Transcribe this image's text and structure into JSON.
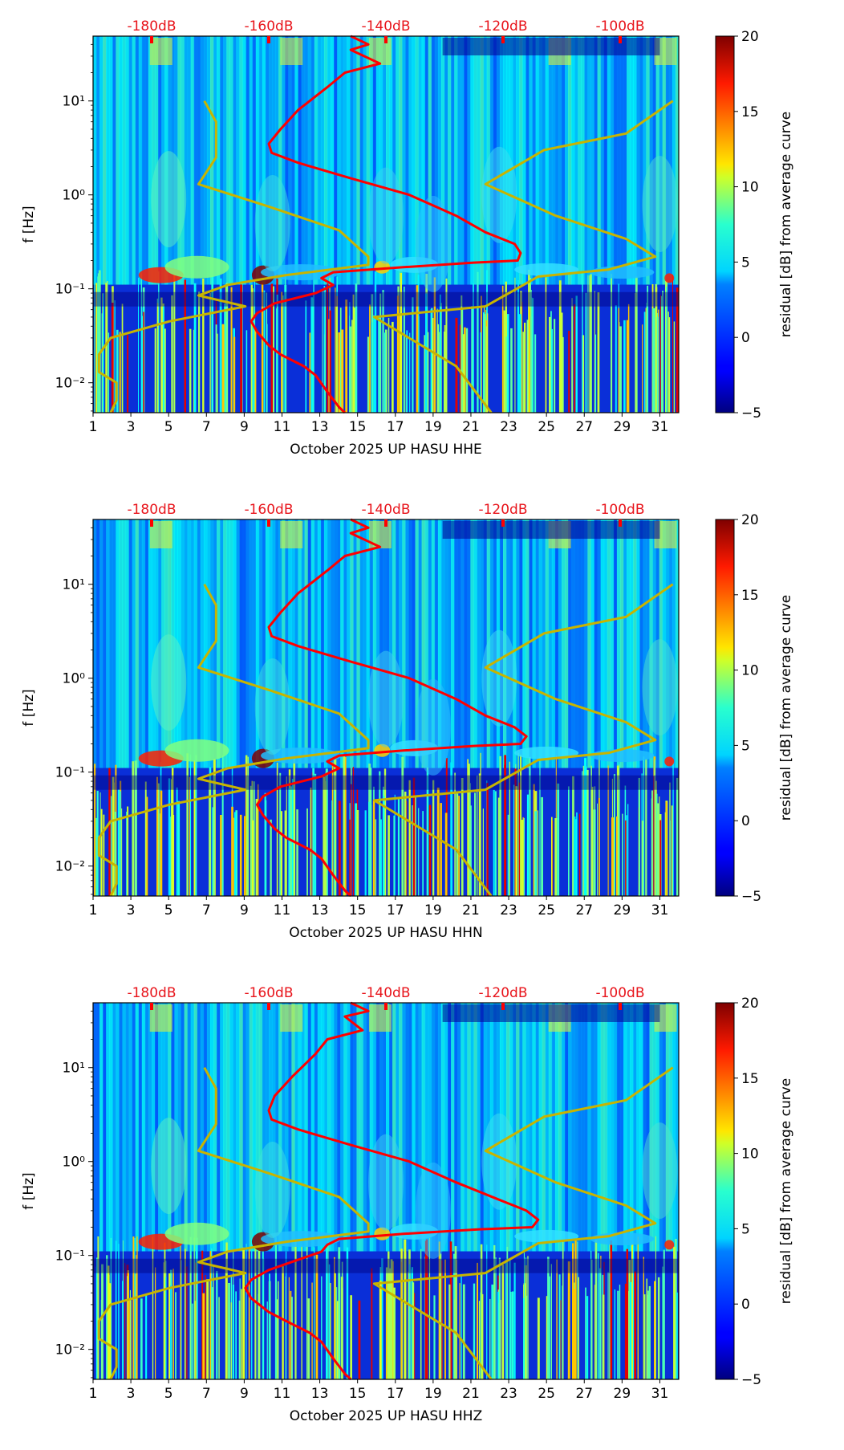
{
  "chart_data": [
    {
      "type": "heatmap",
      "title": "",
      "xlabel": "October 2025 UP HASU  HHE",
      "ylabel": "f [Hz]",
      "colorbar_label": "residual [dB] from average curve",
      "colorbar_ticks": [
        "20",
        "15",
        "10",
        "5",
        "0",
        "−5"
      ],
      "colorbar_range": [
        -5,
        20
      ],
      "colormap": "jet",
      "xlim": [
        1,
        32
      ],
      "x_tick_labels": [
        "1",
        "3",
        "5",
        "7",
        "9",
        "11",
        "13",
        "15",
        "17",
        "19",
        "21",
        "23",
        "25",
        "27",
        "29",
        "31"
      ],
      "yscale": "log",
      "ylim": [
        0.0048,
        49
      ],
      "y_tick_labels": [
        "10¹",
        "10⁰",
        "10⁻¹",
        "10⁻²"
      ],
      "top_axis_labels": [
        "-180dB",
        "-160dB",
        "-140dB",
        "-120dB",
        "-100dB"
      ],
      "top_axis_range_db": [
        -190,
        -90
      ],
      "series": [
        {
          "name": "average-psd-curve",
          "color": "#ff0000",
          "points_db_hz": [
            [
              -146,
              49
            ],
            [
              -143,
              40
            ],
            [
              -146,
              35
            ],
            [
              -141,
              25
            ],
            [
              -147,
              20
            ],
            [
              -150,
              14
            ],
            [
              -155,
              8
            ],
            [
              -158,
              5
            ],
            [
              -160,
              3.5
            ],
            [
              -159.5,
              2.8
            ],
            [
              -155,
              2.2
            ],
            [
              -146,
              1.5
            ],
            [
              -136,
              1.0
            ],
            [
              -128,
              0.6
            ],
            [
              -123,
              0.4
            ],
            [
              -118,
              0.3
            ],
            [
              -117,
              0.24
            ],
            [
              -117.5,
              0.2
            ],
            [
              -125,
              0.19
            ],
            [
              -137,
              0.17
            ],
            [
              -149,
              0.15
            ],
            [
              -151,
              0.13
            ],
            [
              -149,
              0.11
            ],
            [
              -152,
              0.09
            ],
            [
              -159,
              0.07
            ],
            [
              -162,
              0.055
            ],
            [
              -163,
              0.045
            ],
            [
              -162,
              0.035
            ],
            [
              -160,
              0.025
            ],
            [
              -158,
              0.02
            ],
            [
              -154,
              0.015
            ],
            [
              -152,
              0.012
            ],
            [
              -150,
              0.008
            ],
            [
              -148,
              0.0055
            ],
            [
              -147,
              0.0048
            ]
          ]
        },
        {
          "name": "noise-model-low",
          "color": "#c8b400",
          "points_db_hz": [
            [
              -171,
              10
            ],
            [
              -169,
              6
            ],
            [
              -169,
              2.5
            ],
            [
              -172,
              1.3
            ],
            [
              -160,
              0.75
            ],
            [
              -148,
              0.42
            ],
            [
              -143,
              0.22
            ],
            [
              -143,
              0.18
            ],
            [
              -157,
              0.14
            ],
            [
              -167,
              0.11
            ],
            [
              -172,
              0.085
            ],
            [
              -164,
              0.065
            ],
            [
              -177,
              0.045
            ],
            [
              -187,
              0.03
            ],
            [
              -189,
              0.02
            ],
            [
              -189,
              0.013
            ],
            [
              -186,
              0.01
            ],
            [
              -186,
              0.0065
            ],
            [
              -187,
              0.0048
            ]
          ]
        },
        {
          "name": "noise-model-high",
          "color": "#c8b400",
          "points_db_hz": [
            [
              -91,
              10
            ],
            [
              -99,
              4.5
            ],
            [
              -113,
              3
            ],
            [
              -123,
              1.3
            ],
            [
              -111,
              0.6
            ],
            [
              -99,
              0.34
            ],
            [
              -94,
              0.22
            ],
            [
              -102,
              0.16
            ],
            [
              -114,
              0.135
            ],
            [
              -123,
              0.065
            ],
            [
              -142,
              0.05
            ],
            [
              -128,
              0.015
            ],
            [
              -122,
              0.0048
            ]
          ]
        }
      ]
    },
    {
      "type": "heatmap",
      "title": "",
      "xlabel": "October 2025 UP HASU  HHN",
      "ylabel": "f [Hz]",
      "colorbar_label": "residual [dB] from average curve",
      "colorbar_ticks": [
        "20",
        "15",
        "10",
        "5",
        "0",
        "−5"
      ],
      "colorbar_range": [
        -5,
        20
      ],
      "colormap": "jet",
      "xlim": [
        1,
        32
      ],
      "x_tick_labels": [
        "1",
        "3",
        "5",
        "7",
        "9",
        "11",
        "13",
        "15",
        "17",
        "19",
        "21",
        "23",
        "25",
        "27",
        "29",
        "31"
      ],
      "yscale": "log",
      "ylim": [
        0.0048,
        49
      ],
      "y_tick_labels": [
        "10¹",
        "10⁰",
        "10⁻¹",
        "10⁻²"
      ],
      "top_axis_labels": [
        "-180dB",
        "-160dB",
        "-140dB",
        "-120dB",
        "-100dB"
      ],
      "top_axis_range_db": [
        -190,
        -90
      ],
      "series": [
        {
          "name": "average-psd-curve",
          "color": "#ff0000",
          "points_db_hz": [
            [
              -146,
              49
            ],
            [
              -143,
              40
            ],
            [
              -146,
              35
            ],
            [
              -141,
              25
            ],
            [
              -147,
              20
            ],
            [
              -150,
              14
            ],
            [
              -155,
              8
            ],
            [
              -158,
              5
            ],
            [
              -160,
              3.5
            ],
            [
              -159.5,
              2.8
            ],
            [
              -155,
              2.2
            ],
            [
              -146,
              1.5
            ],
            [
              -136,
              1.0
            ],
            [
              -128,
              0.6
            ],
            [
              -123,
              0.4
            ],
            [
              -118,
              0.3
            ],
            [
              -116,
              0.24
            ],
            [
              -117,
              0.2
            ],
            [
              -125,
              0.19
            ],
            [
              -137,
              0.17
            ],
            [
              -148,
              0.15
            ],
            [
              -150,
              0.13
            ],
            [
              -148,
              0.11
            ],
            [
              -151,
              0.09
            ],
            [
              -158,
              0.07
            ],
            [
              -161,
              0.055
            ],
            [
              -162,
              0.045
            ],
            [
              -161,
              0.035
            ],
            [
              -159,
              0.025
            ],
            [
              -157,
              0.02
            ],
            [
              -153,
              0.015
            ],
            [
              -151,
              0.012
            ],
            [
              -149,
              0.008
            ],
            [
              -147,
              0.0055
            ],
            [
              -146,
              0.0048
            ]
          ]
        },
        {
          "name": "noise-model-low",
          "color": "#c8b400",
          "points_db_hz": [
            [
              -171,
              10
            ],
            [
              -169,
              6
            ],
            [
              -169,
              2.5
            ],
            [
              -172,
              1.3
            ],
            [
              -160,
              0.75
            ],
            [
              -148,
              0.42
            ],
            [
              -143,
              0.22
            ],
            [
              -143,
              0.18
            ],
            [
              -157,
              0.14
            ],
            [
              -167,
              0.11
            ],
            [
              -172,
              0.085
            ],
            [
              -164,
              0.065
            ],
            [
              -177,
              0.045
            ],
            [
              -187,
              0.03
            ],
            [
              -189,
              0.02
            ],
            [
              -189,
              0.013
            ],
            [
              -186,
              0.01
            ],
            [
              -186,
              0.0065
            ],
            [
              -187,
              0.0048
            ]
          ]
        },
        {
          "name": "noise-model-high",
          "color": "#c8b400",
          "points_db_hz": [
            [
              -91,
              10
            ],
            [
              -99,
              4.5
            ],
            [
              -113,
              3
            ],
            [
              -123,
              1.3
            ],
            [
              -111,
              0.6
            ],
            [
              -99,
              0.34
            ],
            [
              -94,
              0.22
            ],
            [
              -102,
              0.16
            ],
            [
              -114,
              0.135
            ],
            [
              -123,
              0.065
            ],
            [
              -142,
              0.05
            ],
            [
              -128,
              0.015
            ],
            [
              -122,
              0.0048
            ]
          ]
        }
      ]
    },
    {
      "type": "heatmap",
      "title": "",
      "xlabel": "October 2025 UP HASU  HHZ",
      "ylabel": "f [Hz]",
      "colorbar_label": "residual [dB] from average curve",
      "colorbar_ticks": [
        "20",
        "15",
        "10",
        "5",
        "0",
        "−5"
      ],
      "colorbar_range": [
        -5,
        20
      ],
      "colormap": "jet",
      "xlim": [
        1,
        32
      ],
      "x_tick_labels": [
        "1",
        "3",
        "5",
        "7",
        "9",
        "11",
        "13",
        "15",
        "17",
        "19",
        "21",
        "23",
        "25",
        "27",
        "29",
        "31"
      ],
      "yscale": "log",
      "ylim": [
        0.0048,
        49
      ],
      "y_tick_labels": [
        "10¹",
        "10⁰",
        "10⁻¹",
        "10⁻²"
      ],
      "top_axis_labels": [
        "-180dB",
        "-160dB",
        "-140dB",
        "-120dB",
        "-100dB"
      ],
      "top_axis_range_db": [
        -190,
        -90
      ],
      "series": [
        {
          "name": "average-psd-curve",
          "color": "#ff0000",
          "points_db_hz": [
            [
              -146,
              49
            ],
            [
              -143,
              40
            ],
            [
              -147,
              35
            ],
            [
              -144,
              25
            ],
            [
              -150,
              20
            ],
            [
              -152,
              14
            ],
            [
              -156,
              8
            ],
            [
              -159,
              5
            ],
            [
              -160,
              3.5
            ],
            [
              -159.5,
              2.8
            ],
            [
              -155,
              2.2
            ],
            [
              -146,
              1.5
            ],
            [
              -136,
              1.0
            ],
            [
              -128,
              0.6
            ],
            [
              -121,
              0.4
            ],
            [
              -116,
              0.3
            ],
            [
              -114,
              0.24
            ],
            [
              -115,
              0.2
            ],
            [
              -124,
              0.19
            ],
            [
              -137,
              0.17
            ],
            [
              -148,
              0.15
            ],
            [
              -150,
              0.13
            ],
            [
              -151,
              0.11
            ],
            [
              -155,
              0.09
            ],
            [
              -160,
              0.07
            ],
            [
              -163,
              0.055
            ],
            [
              -164,
              0.045
            ],
            [
              -163,
              0.035
            ],
            [
              -160,
              0.025
            ],
            [
              -157,
              0.02
            ],
            [
              -153,
              0.015
            ],
            [
              -151,
              0.012
            ],
            [
              -149,
              0.008
            ],
            [
              -147,
              0.0055
            ],
            [
              -146,
              0.0048
            ]
          ]
        },
        {
          "name": "noise-model-low",
          "color": "#c8b400",
          "points_db_hz": [
            [
              -171,
              10
            ],
            [
              -169,
              6
            ],
            [
              -169,
              2.5
            ],
            [
              -172,
              1.3
            ],
            [
              -160,
              0.75
            ],
            [
              -148,
              0.42
            ],
            [
              -143,
              0.22
            ],
            [
              -143,
              0.18
            ],
            [
              -157,
              0.14
            ],
            [
              -167,
              0.11
            ],
            [
              -172,
              0.085
            ],
            [
              -164,
              0.065
            ],
            [
              -177,
              0.045
            ],
            [
              -187,
              0.03
            ],
            [
              -189,
              0.02
            ],
            [
              -189,
              0.013
            ],
            [
              -186,
              0.01
            ],
            [
              -186,
              0.0065
            ],
            [
              -187,
              0.0048
            ]
          ]
        },
        {
          "name": "noise-model-high",
          "color": "#c8b400",
          "points_db_hz": [
            [
              -91,
              10
            ],
            [
              -99,
              4.5
            ],
            [
              -113,
              3
            ],
            [
              -123,
              1.3
            ],
            [
              -111,
              0.6
            ],
            [
              -99,
              0.34
            ],
            [
              -94,
              0.22
            ],
            [
              -102,
              0.16
            ],
            [
              -114,
              0.135
            ],
            [
              -123,
              0.065
            ],
            [
              -142,
              0.05
            ],
            [
              -128,
              0.015
            ],
            [
              -122,
              0.0048
            ]
          ]
        }
      ]
    }
  ]
}
